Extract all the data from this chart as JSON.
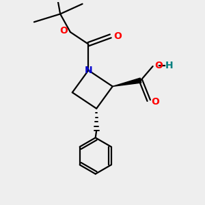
{
  "bg_color": "#eeeeee",
  "atom_colors": {
    "N": "#0000cc",
    "O": "#ff0000",
    "H": "#008080",
    "C": "#000000"
  },
  "bond_color": "#000000",
  "bond_width": 1.6,
  "figsize": [
    3.0,
    3.0
  ],
  "dpi": 100,
  "xlim": [
    0,
    10
  ],
  "ylim": [
    0,
    10
  ]
}
